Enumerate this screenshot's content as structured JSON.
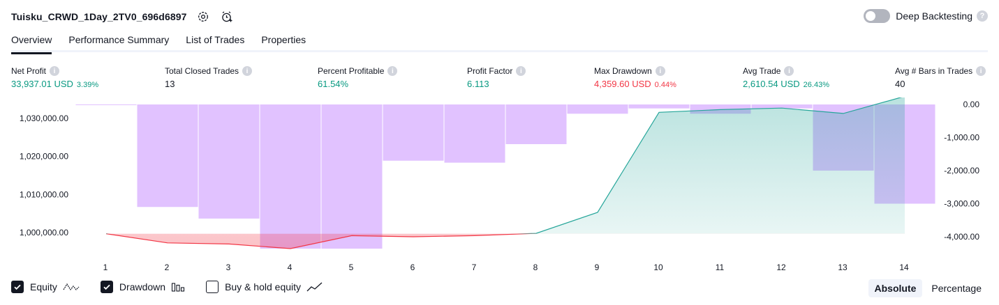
{
  "header": {
    "strategy_name": "Tuisku_CRWD_1Day_2TV0_696d6897",
    "settings_icon": "gear-icon",
    "alert_icon": "alarm-clock-plus-icon",
    "deep_backtesting_label": "Deep Backtesting",
    "deep_backtesting_on": false
  },
  "tabs": [
    {
      "label": "Overview",
      "active": true
    },
    {
      "label": "Performance Summary",
      "active": false
    },
    {
      "label": "List of Trades",
      "active": false
    },
    {
      "label": "Properties",
      "active": false
    }
  ],
  "metrics": {
    "net_profit": {
      "label": "Net Profit",
      "value": "33,937.01 USD",
      "pct": "3.39%"
    },
    "total_closed_trades": {
      "label": "Total Closed Trades",
      "value": "13"
    },
    "percent_profitable": {
      "label": "Percent Profitable",
      "value": "61.54%"
    },
    "profit_factor": {
      "label": "Profit Factor",
      "value": "6.113"
    },
    "max_drawdown": {
      "label": "Max Drawdown",
      "value": "4,359.60 USD",
      "pct": "0.44%"
    },
    "avg_trade": {
      "label": "Avg Trade",
      "value": "2,610.54 USD",
      "pct": "26.43%"
    },
    "avg_bars": {
      "label": "Avg # Bars in Trades",
      "value": "40"
    }
  },
  "colors": {
    "profit": "#089981",
    "loss": "#f23645",
    "drawdown_bar": "#e1c2ff",
    "equity_line_up": "#26a69a",
    "equity_line_down": "#f23645"
  },
  "chart_data": {
    "type": "bar",
    "x": [
      1,
      2,
      3,
      4,
      5,
      6,
      7,
      8,
      9,
      10,
      11,
      12,
      13,
      14
    ],
    "series": [
      {
        "name": "Equity",
        "type": "area",
        "axis": "left",
        "values": [
          999700,
          997300,
          997000,
          995800,
          999200,
          998900,
          999200,
          999800,
          1005300,
          1031600,
          1032300,
          1032700,
          1031300,
          1035800
        ]
      },
      {
        "name": "Drawdown",
        "type": "bar",
        "axis": "right",
        "values": [
          -15,
          -3100,
          -3450,
          -4359.6,
          -4359.6,
          -1700,
          -1760,
          -1200,
          -280,
          -120,
          -280,
          -120,
          -2000,
          -3000
        ]
      }
    ],
    "left_axis": {
      "ticks": [
        "1,000,000.00",
        "1,010,000.00",
        "1,020,000.00",
        "1,030,000.00"
      ],
      "tick_values": [
        1000000,
        1010000,
        1020000,
        1030000
      ]
    },
    "right_axis": {
      "ticks": [
        "0.00",
        "-1,000.00",
        "-2,000.00",
        "-3,000.00",
        "-4,000.00"
      ],
      "tick_values": [
        0,
        -1000,
        -2000,
        -3000,
        -4000
      ]
    },
    "x_ticks": [
      "1",
      "2",
      "3",
      "4",
      "5",
      "6",
      "7",
      "8",
      "9",
      "10",
      "11",
      "12",
      "13",
      "14"
    ],
    "grid": false
  },
  "legend": [
    {
      "label": "Equity",
      "checked": true,
      "icon": "equity-line-icon"
    },
    {
      "label": "Drawdown",
      "checked": true,
      "icon": "drawdown-bars-icon"
    },
    {
      "label": "Buy & hold equity",
      "checked": false,
      "icon": "buy-hold-line-icon"
    }
  ],
  "modes": [
    {
      "label": "Absolute",
      "active": true
    },
    {
      "label": "Percentage",
      "active": false
    }
  ]
}
